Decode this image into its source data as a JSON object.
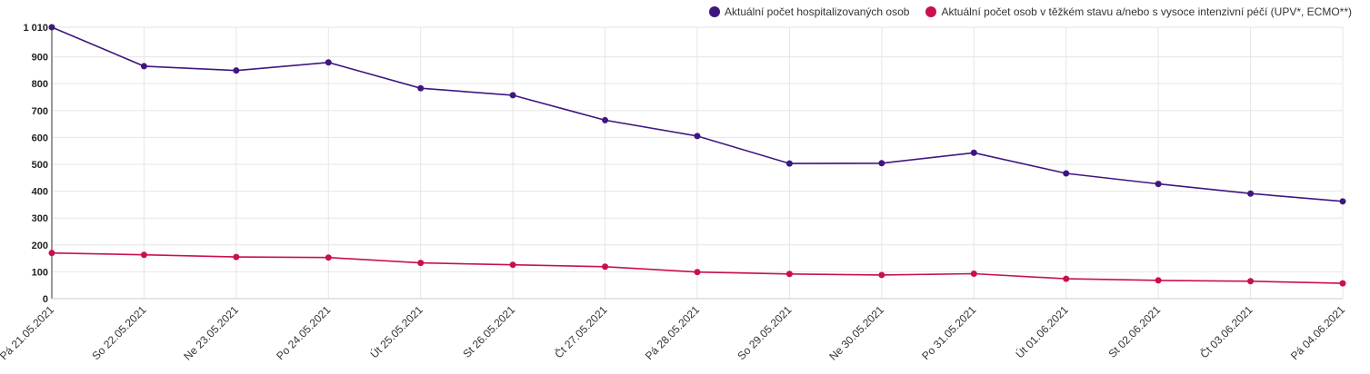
{
  "chart_data": {
    "type": "line",
    "categories": [
      "Pá 21.05.2021",
      "So 22.05.2021",
      "Ne 23.05.2021",
      "Po 24.05.2021",
      "Út 25.05.2021",
      "St 26.05.2021",
      "Čt 27.05.2021",
      "Pá 28.05.2021",
      "So 29.05.2021",
      "Ne 30.05.2021",
      "Po 31.05.2021",
      "Út 01.06.2021",
      "St 02.06.2021",
      "Čt 03.06.2021",
      "Pá 04.06.2021"
    ],
    "series": [
      {
        "name": "Aktuální počet hospitalizovaných osob",
        "color": "#3f1680",
        "values": [
          1010,
          865,
          849,
          879,
          783,
          757,
          664,
          605,
          503,
          504,
          543,
          466,
          427,
          391,
          362
        ]
      },
      {
        "name": "Aktuální počet osob v těžkém stavu a/nebo s vysoce intenzivní péčí (UPV*, ECMO**)",
        "color": "#c8114a",
        "values": [
          170,
          163,
          155,
          153,
          133,
          126,
          119,
          99,
          92,
          88,
          93,
          74,
          68,
          65,
          57
        ]
      }
    ],
    "yticks": [
      {
        "value": 0,
        "label": "0"
      },
      {
        "value": 100,
        "label": "100"
      },
      {
        "value": 200,
        "label": "200"
      },
      {
        "value": 300,
        "label": "300"
      },
      {
        "value": 400,
        "label": "400"
      },
      {
        "value": 500,
        "label": "500"
      },
      {
        "value": 600,
        "label": "600"
      },
      {
        "value": 700,
        "label": "700"
      },
      {
        "value": 800,
        "label": "800"
      },
      {
        "value": 900,
        "label": "900"
      },
      {
        "value": 1010,
        "label": "1 010"
      }
    ],
    "ylim": [
      0,
      1010
    ],
    "grid": true,
    "legend_position": "top-right"
  }
}
